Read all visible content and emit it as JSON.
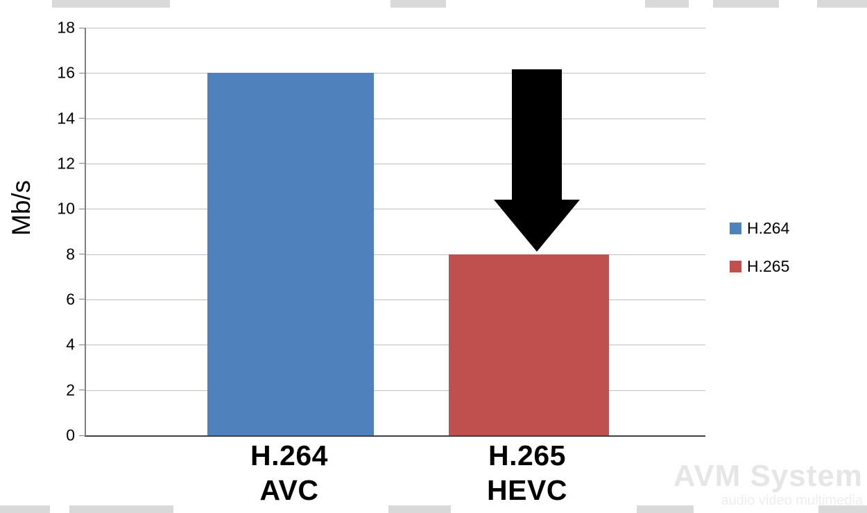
{
  "chart_data": {
    "type": "bar",
    "categories": [
      [
        "H.264",
        "AVC"
      ],
      [
        "H.265",
        "HEVC"
      ]
    ],
    "values": [
      16,
      8
    ],
    "series": [
      {
        "name": "H.264",
        "value": 16,
        "color": "#4f81bd"
      },
      {
        "name": "H.265",
        "value": 8,
        "color": "#c0504d"
      }
    ],
    "title": "",
    "xlabel": "",
    "ylabel": "Mb/s",
    "ylim": [
      0,
      18
    ],
    "yticks": [
      0,
      2,
      4,
      6,
      8,
      10,
      12,
      14,
      16,
      18
    ],
    "grid": true,
    "legend": {
      "position": "right",
      "entries": [
        {
          "label": "H.264",
          "color": "#4f81bd"
        },
        {
          "label": "H.265",
          "color": "#c0504d"
        }
      ]
    },
    "annotations": [
      {
        "type": "arrow",
        "direction": "down",
        "from_value": 16,
        "to_value": 8,
        "target_category": "H.265 HEVC",
        "color": "#000000"
      }
    ]
  },
  "watermark": {
    "line1": "AVM System",
    "line2": "audio video multimedia"
  },
  "colors": {
    "gridline": "#bfbfbf",
    "axis": "#404040",
    "background": "#ffffff",
    "edge_artifact": "#d9d9d9"
  }
}
